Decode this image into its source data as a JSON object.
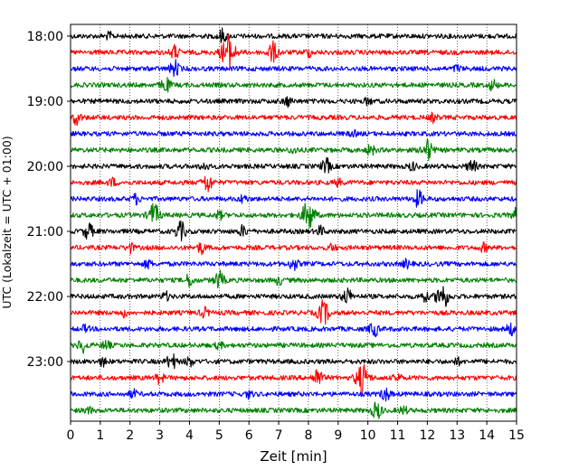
{
  "chart_data": {
    "type": "line",
    "title": "",
    "xlabel": "Zeit  [min]",
    "ylabel": "UTC (Lokalzeit = UTC + 01:00)",
    "xlim": [
      0,
      15
    ],
    "x_ticks": [
      "0",
      "1",
      "2",
      "3",
      "4",
      "5",
      "6",
      "7",
      "8",
      "9",
      "10",
      "11",
      "12",
      "13",
      "14",
      "15"
    ],
    "y_ticks": [
      "18:00",
      "19:00",
      "20:00",
      "21:00",
      "22:00",
      "23:00"
    ],
    "grid": "vertical dotted at each minute",
    "trace_colors": [
      "#000000",
      "#ff0000",
      "#0000ff",
      "#008000"
    ],
    "trace_minutes": 15,
    "traces": [
      {
        "start": "18:00",
        "events": [
          [
            5.1,
            1.0
          ],
          [
            1.3,
            0.5
          ]
        ]
      },
      {
        "start": "18:15",
        "events": [
          [
            5.3,
            2.6
          ],
          [
            6.8,
            1.5
          ],
          [
            3.5,
            1.0
          ],
          [
            8.0,
            0.6
          ]
        ]
      },
      {
        "start": "18:30",
        "events": [
          [
            3.5,
            1.2
          ],
          [
            13.0,
            0.5
          ]
        ]
      },
      {
        "start": "18:45",
        "events": [
          [
            3.2,
            1.1
          ],
          [
            14.2,
            0.8
          ]
        ]
      },
      {
        "start": "19:00",
        "events": [
          [
            7.3,
            0.7
          ],
          [
            10.0,
            0.5
          ]
        ]
      },
      {
        "start": "19:15",
        "events": [
          [
            0.2,
            1.0
          ],
          [
            12.2,
            0.6
          ]
        ]
      },
      {
        "start": "19:30",
        "events": [
          [
            9.5,
            0.4
          ]
        ]
      },
      {
        "start": "19:45",
        "events": [
          [
            12.0,
            1.6
          ],
          [
            10.1,
            0.8
          ],
          [
            7.5,
            0.5
          ]
        ]
      },
      {
        "start": "20:00",
        "events": [
          [
            8.6,
            1.1
          ],
          [
            13.5,
            1.0
          ],
          [
            4.5,
            0.6
          ],
          [
            11.5,
            0.6
          ]
        ]
      },
      {
        "start": "20:15",
        "events": [
          [
            4.6,
            1.4
          ],
          [
            1.4,
            0.6
          ],
          [
            9.0,
            0.5
          ]
        ]
      },
      {
        "start": "20:30",
        "events": [
          [
            11.7,
            1.2
          ],
          [
            2.2,
            0.7
          ],
          [
            5.8,
            0.6
          ]
        ]
      },
      {
        "start": "20:45",
        "events": [
          [
            2.8,
            1.7
          ],
          [
            8.0,
            2.2
          ],
          [
            15.0,
            1.0
          ],
          [
            5.0,
            0.6
          ]
        ]
      },
      {
        "start": "21:00",
        "events": [
          [
            0.6,
            1.2
          ],
          [
            3.7,
            1.4
          ],
          [
            5.8,
            0.8
          ],
          [
            8.4,
            0.7
          ]
        ]
      },
      {
        "start": "21:15",
        "events": [
          [
            2.0,
            0.7
          ],
          [
            4.4,
            0.8
          ],
          [
            8.8,
            0.5
          ],
          [
            13.9,
            0.6
          ]
        ]
      },
      {
        "start": "21:30",
        "events": [
          [
            7.5,
            0.9
          ],
          [
            11.3,
            0.6
          ],
          [
            2.6,
            0.6
          ]
        ]
      },
      {
        "start": "21:45",
        "events": [
          [
            5.0,
            1.3
          ],
          [
            4.0,
            0.9
          ],
          [
            7.0,
            0.6
          ]
        ]
      },
      {
        "start": "22:00",
        "events": [
          [
            9.3,
            1.2
          ],
          [
            12.5,
            2.0
          ],
          [
            11.9,
            0.7
          ],
          [
            3.2,
            0.6
          ]
        ]
      },
      {
        "start": "22:15",
        "events": [
          [
            8.5,
            1.8
          ],
          [
            4.5,
            0.7
          ],
          [
            1.8,
            0.5
          ]
        ]
      },
      {
        "start": "22:30",
        "events": [
          [
            10.2,
            1.1
          ],
          [
            14.8,
            0.9
          ],
          [
            0.5,
            0.5
          ]
        ]
      },
      {
        "start": "22:45",
        "events": [
          [
            0.4,
            1.0
          ],
          [
            1.2,
            0.7
          ],
          [
            5.0,
            0.5
          ]
        ]
      },
      {
        "start": "23:00",
        "events": [
          [
            3.4,
            1.2
          ],
          [
            4.0,
            0.7
          ],
          [
            1.1,
            0.6
          ],
          [
            13.0,
            0.5
          ]
        ]
      },
      {
        "start": "23:15",
        "events": [
          [
            9.8,
            2.2
          ],
          [
            8.3,
            1.4
          ],
          [
            3.0,
            0.8
          ],
          [
            11.0,
            0.6
          ]
        ]
      },
      {
        "start": "23:30",
        "events": [
          [
            10.6,
            1.0
          ],
          [
            2.1,
            0.6
          ],
          [
            6.0,
            0.5
          ]
        ]
      },
      {
        "start": "23:45",
        "events": [
          [
            10.3,
            1.3
          ],
          [
            11.2,
            0.6
          ],
          [
            0.6,
            0.5
          ]
        ]
      }
    ]
  }
}
